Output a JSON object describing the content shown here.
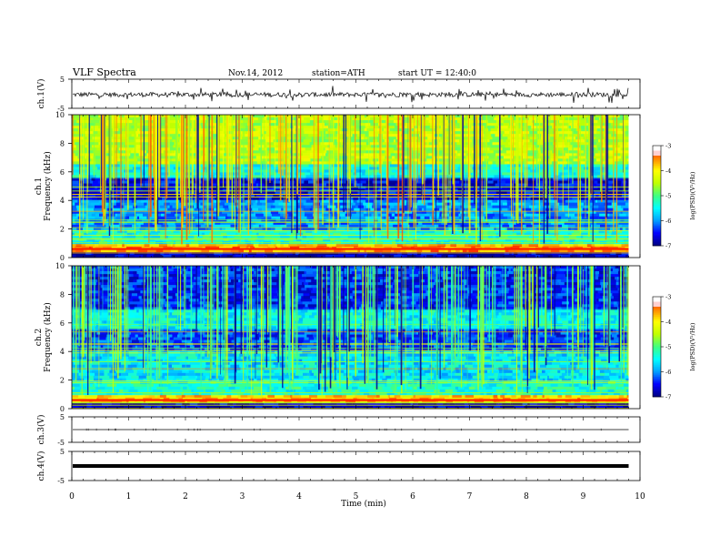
{
  "header": {
    "title": "VLF  Spectra",
    "date": "Nov.14, 2012",
    "station": "station=ATH",
    "start": "start  UT  =    12:40:0"
  },
  "chart_data": [
    {
      "type": "line",
      "panel": "ch1-waveform",
      "ylabel": "ch.1(V)",
      "ylim": [
        -5,
        5
      ],
      "yticks": [
        "5",
        "-5"
      ],
      "description_values": "noisy waveform centered near -0.3 V, amplitude roughly ±1 V with spikes to about ±2.5 V"
    },
    {
      "type": "heatmap",
      "panel": "ch1-spectrogram",
      "ylabel": "ch.1\nFrequency  (kHz)",
      "ylim": [
        0,
        10
      ],
      "yticks": [
        "0",
        "2",
        "4",
        "6",
        "8",
        "10"
      ],
      "xlim": [
        0,
        10
      ],
      "data_xmax": 9.8,
      "colorbar": {
        "label": "log(PSD)(V²/Hz)",
        "range": [
          -7,
          -3
        ],
        "ticks": [
          "-3",
          "-4",
          "-5",
          "-6",
          "-7"
        ]
      },
      "bands": [
        {
          "f": [
            0,
            0.3
          ],
          "level": -6.8
        },
        {
          "f": [
            0.3,
            0.9
          ],
          "level": -3.6
        },
        {
          "f": [
            0.9,
            2.0
          ],
          "level": -5.3
        },
        {
          "f": [
            2.0,
            4.0
          ],
          "level": -6.0
        },
        {
          "f": [
            4.0,
            5.5
          ],
          "level": -6.6
        },
        {
          "f": [
            5.5,
            6.5
          ],
          "level": -5.4
        },
        {
          "f": [
            6.5,
            10
          ],
          "level": -4.5
        }
      ]
    },
    {
      "type": "heatmap",
      "panel": "ch2-spectrogram",
      "ylabel": "ch.2\nFrequency  (kHz)",
      "ylim": [
        0,
        10
      ],
      "yticks": [
        "0",
        "2",
        "4",
        "6",
        "8",
        "10"
      ],
      "xlim": [
        0,
        10
      ],
      "data_xmax": 9.8,
      "colorbar": {
        "label": "log(PSD)(V²/Hz)",
        "range": [
          -7,
          -3
        ],
        "ticks": [
          "-3",
          "-4",
          "-5",
          "-6",
          "-7"
        ]
      },
      "bands": [
        {
          "f": [
            0,
            0.3
          ],
          "level": -6.8
        },
        {
          "f": [
            0.3,
            0.9
          ],
          "level": -3.8
        },
        {
          "f": [
            0.9,
            2.0
          ],
          "level": -5.3
        },
        {
          "f": [
            2.0,
            4.0
          ],
          "level": -5.6
        },
        {
          "f": [
            4.0,
            5.5
          ],
          "level": -6.3
        },
        {
          "f": [
            5.5,
            7.0
          ],
          "level": -5.5
        },
        {
          "f": [
            7.0,
            10
          ],
          "level": -6.4
        }
      ]
    },
    {
      "type": "line",
      "panel": "ch3-waveform",
      "ylabel": "ch.3(V)",
      "ylim": [
        -5,
        5
      ],
      "yticks": [
        "5",
        "-5"
      ],
      "description_values": "flat line near 0 V"
    },
    {
      "type": "line",
      "panel": "ch4-waveform",
      "ylabel": "ch.4(V)",
      "ylim": [
        -5,
        5
      ],
      "yticks": [
        "5",
        "-5"
      ],
      "description_values": "thick flat line near 0 V"
    }
  ],
  "xaxis": {
    "label": "Time  (min)",
    "ticks": [
      "0",
      "1",
      "2",
      "3",
      "4",
      "5",
      "6",
      "7",
      "8",
      "9",
      "10"
    ]
  },
  "colors": {
    "colormap": [
      "#00007f",
      "#0000ff",
      "#00a0ff",
      "#00ffff",
      "#40ff80",
      "#c0ff00",
      "#ffff00",
      "#ff8000",
      "#ff0000",
      "#ffe6e6"
    ]
  }
}
